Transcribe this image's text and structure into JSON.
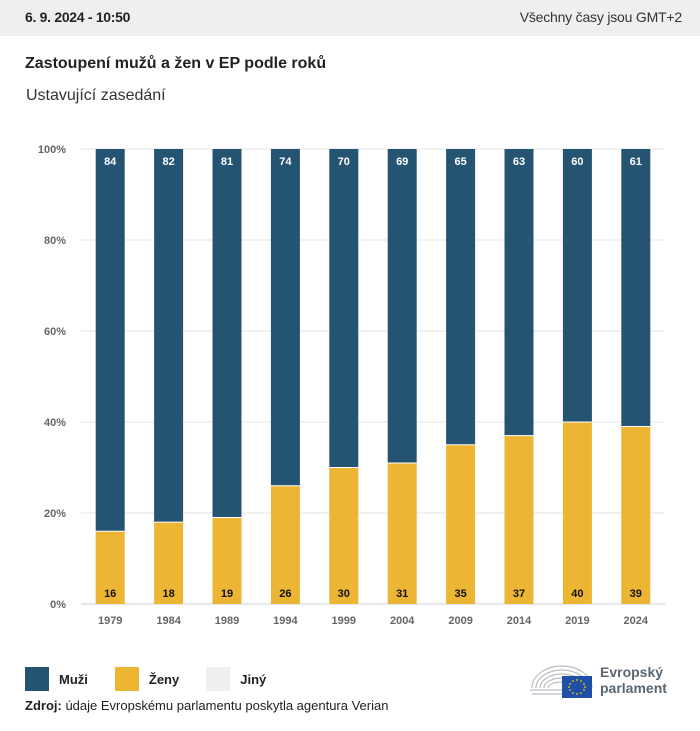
{
  "header": {
    "datetime": "6. 9. 2024 - 10:50",
    "timezone_note": "Všechny časy jsou GMT+2"
  },
  "title": "Zastoupení mužů a žen v EP podle roků",
  "subtitle": "Ustavující zasedání",
  "colors": {
    "men": "#255473",
    "women": "#ecb634",
    "other": "#eeeff1",
    "grid": "#e6e6e6",
    "axis_text": "#666666"
  },
  "chart_data": {
    "type": "bar",
    "stacked": true,
    "title": "Zastoupení mužů a žen v EP podle roků",
    "subtitle": "Ustavující zasedání",
    "xlabel": "",
    "ylabel": "",
    "ylim": [
      0,
      100
    ],
    "yticks": [
      0,
      20,
      40,
      60,
      80,
      100
    ],
    "ytick_labels": [
      "0%",
      "20%",
      "40%",
      "60%",
      "80%",
      "100%"
    ],
    "grid": true,
    "categories": [
      "1979",
      "1984",
      "1989",
      "1994",
      "1999",
      "2004",
      "2009",
      "2014",
      "2019",
      "2024"
    ],
    "series": [
      {
        "name": "Ženy",
        "values": [
          16,
          18,
          19,
          26,
          30,
          31,
          35,
          37,
          40,
          39
        ]
      },
      {
        "name": "Muži",
        "values": [
          84,
          82,
          81,
          74,
          70,
          69,
          65,
          63,
          60,
          61
        ]
      }
    ],
    "legend": {
      "placement": "bottom-left",
      "entries": [
        "Muži",
        "Ženy",
        "Jiný"
      ]
    }
  },
  "legend": {
    "items": [
      {
        "label": "Muži"
      },
      {
        "label": "Ženy"
      },
      {
        "label": "Jiný"
      }
    ]
  },
  "source": {
    "label": "Zdroj:",
    "text": " údaje Evropskému parlamentu poskytla agentura Verian"
  },
  "logo": {
    "line1": "Evropský",
    "line2": "parlament"
  }
}
